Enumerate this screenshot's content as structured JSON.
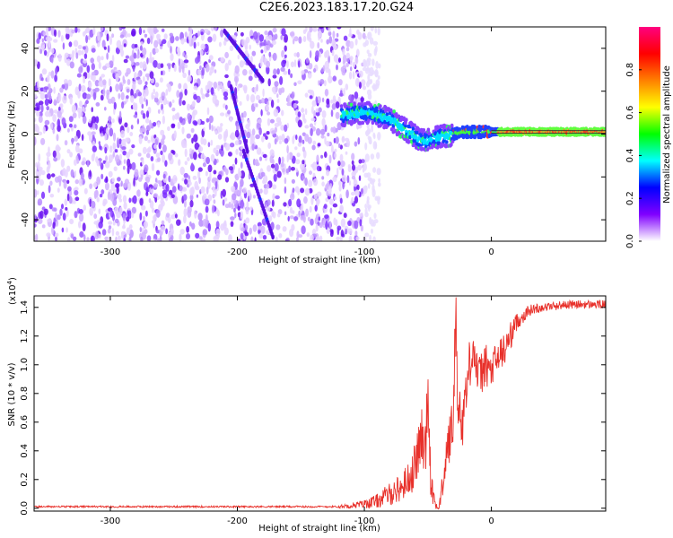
{
  "title": "C2E6.2023.183.17.20.G24",
  "chart_data": [
    {
      "type": "heatmap",
      "title": "",
      "xlabel": "Height of straight line (km)",
      "ylabel": "Frequency (Hz)",
      "xlim": [
        -360,
        90
      ],
      "ylim": [
        -50,
        50
      ],
      "xticks": [
        -300,
        -200,
        -100,
        0
      ],
      "yticks": [
        -40,
        -20,
        0,
        20,
        40
      ],
      "noise_region_x": [
        -360,
        -100
      ],
      "signal_trace": {
        "x": [
          -115,
          -100,
          -90,
          -80,
          -70,
          -60,
          -55,
          -50,
          -45,
          -40,
          -35,
          -30,
          -20,
          -10,
          0,
          20,
          50,
          90
        ],
        "freq_hz": [
          9,
          10,
          9,
          7,
          3,
          -1,
          -3,
          -3,
          -2,
          -1,
          -1,
          0,
          1,
          1,
          1,
          1,
          1,
          1
        ]
      },
      "streaks": [
        {
          "x": [
            -210,
            -180
          ],
          "y": [
            48,
            25
          ]
        },
        {
          "x": [
            -205,
            -192
          ],
          "y": [
            22,
            -8
          ]
        },
        {
          "x": [
            -195,
            -172
          ],
          "y": [
            -8,
            -48
          ]
        }
      ],
      "colorbar": {
        "label": "Normalized spectral amplitude",
        "range": [
          0,
          1
        ],
        "ticks": [
          0.0,
          0.2,
          0.4,
          0.6,
          0.8
        ],
        "tick_labels": [
          "0.0",
          "0.2",
          "0.4",
          "0.6",
          "0.8"
        ],
        "colormap": [
          "#ffffff",
          "#8000ff",
          "#0000ff",
          "#00ffff",
          "#00ff00",
          "#ffff00",
          "#ff8000",
          "#ff0000",
          "#ff0080"
        ]
      }
    },
    {
      "type": "line",
      "title": "",
      "xlabel": "Height of straight line (km)",
      "ylabel": "SNR (10 * v/v)",
      "yscale_label": "(x10",
      "yscale_exp": "4",
      "xlim": [
        -360,
        90
      ],
      "ylim": [
        -0.02,
        1.48
      ],
      "xticks": [
        -300,
        -200,
        -100,
        0
      ],
      "yticks": [
        0.0,
        0.2,
        0.4,
        0.6,
        0.8,
        1.0,
        1.2,
        1.4
      ],
      "ytick_labels": [
        "0.0",
        "0.2",
        "0.4",
        "0.6",
        "0.8",
        "1.0",
        "1.2",
        "1.4"
      ],
      "series": [
        {
          "color": "#e8302a",
          "x": [
            -360,
            -200,
            -120,
            -100,
            -90,
            -80,
            -70,
            -62,
            -58,
            -55,
            -52,
            -50,
            -48,
            -46,
            -44,
            -42,
            -40,
            -38,
            -35,
            -30,
            -28,
            -26,
            -25,
            -23,
            -20,
            -15,
            -10,
            -5,
            0,
            5,
            10,
            15,
            20,
            30,
            40,
            60,
            90
          ],
          "values": [
            0.01,
            0.01,
            0.01,
            0.03,
            0.05,
            0.1,
            0.15,
            0.25,
            0.38,
            0.5,
            0.4,
            0.85,
            0.3,
            0.1,
            0.02,
            0.0,
            0.05,
            0.2,
            0.4,
            0.6,
            1.45,
            0.5,
            0.75,
            0.6,
            0.8,
            1.15,
            0.9,
            1.0,
            0.95,
            1.05,
            1.1,
            1.2,
            1.3,
            1.38,
            1.4,
            1.42,
            1.42
          ],
          "noise": [
            0.0,
            0.006,
            0.01,
            0.03,
            0.05,
            0.08,
            0.1,
            0.14,
            0.18,
            0.2,
            0.2,
            0.25,
            0.2,
            0.1,
            0.04,
            0.02,
            0.05,
            0.12,
            0.18,
            0.2,
            0.2,
            0.2,
            0.2,
            0.2,
            0.2,
            0.18,
            0.16,
            0.15,
            0.15,
            0.14,
            0.12,
            0.1,
            0.06,
            0.04,
            0.03,
            0.03,
            0.03
          ]
        }
      ]
    }
  ]
}
